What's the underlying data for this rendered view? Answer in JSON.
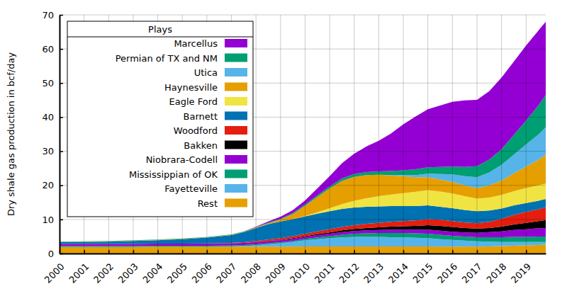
{
  "chart_data": {
    "type": "stacked_area",
    "ylabel": "Dry shale gas production in bcf/day",
    "legend_title": "Plays",
    "legend": "upper-left",
    "stacked": true,
    "grid": true,
    "x": [
      2000,
      2001,
      2002,
      2003,
      2004,
      2005,
      2006,
      2007,
      2007.5,
      2008,
      2008.5,
      2009,
      2009.5,
      2010,
      2010.5,
      2011,
      2011.5,
      2012,
      2012.5,
      2013,
      2013.5,
      2014,
      2014.5,
      2015,
      2015.5,
      2016,
      2016.5,
      2017,
      2017.5,
      2018,
      2018.5,
      2019,
      2019.5,
      2019.8
    ],
    "xlim": [
      2000,
      2019.8
    ],
    "xticks": [
      2000,
      2001,
      2002,
      2003,
      2004,
      2005,
      2006,
      2007,
      2008,
      2009,
      2010,
      2011,
      2012,
      2013,
      2014,
      2015,
      2016,
      2017,
      2018,
      2019
    ],
    "ylim": [
      0,
      70
    ],
    "yticks": [
      0,
      10,
      20,
      30,
      40,
      50,
      60,
      70
    ],
    "series": [
      {
        "name": "Marcellus",
        "color": "#9400d3",
        "values": [
          0,
          0,
          0,
          0,
          0,
          0,
          0,
          0,
          0,
          0.1,
          0.3,
          0.6,
          0.8,
          1.2,
          2.0,
          3.0,
          4.5,
          6.0,
          7.5,
          9.0,
          11.0,
          13.5,
          15.5,
          17.0,
          18.0,
          19.0,
          19.5,
          19.5,
          20.0,
          21.0,
          21.5,
          22.0,
          22.0,
          21.5
        ]
      },
      {
        "name": "Permian of TX and NM",
        "color": "#009e73",
        "values": [
          0.1,
          0.1,
          0.1,
          0.1,
          0.1,
          0.1,
          0.1,
          0.1,
          0.1,
          0.1,
          0.2,
          0.2,
          0.3,
          0.4,
          0.5,
          0.6,
          0.7,
          0.8,
          0.9,
          1.0,
          1.2,
          1.4,
          1.7,
          1.9,
          2.1,
          2.3,
          2.7,
          3.2,
          3.8,
          4.6,
          5.8,
          7.0,
          8.5,
          9.5
        ]
      },
      {
        "name": "Utica",
        "color": "#56b4e9",
        "values": [
          0,
          0,
          0,
          0,
          0,
          0,
          0,
          0,
          0,
          0,
          0,
          0,
          0,
          0,
          0,
          0,
          0,
          0,
          0,
          0,
          0.1,
          0.3,
          0.6,
          1.0,
          1.6,
          2.2,
          2.7,
          3.2,
          3.8,
          4.6,
          5.5,
          6.5,
          7.4,
          8.0
        ]
      },
      {
        "name": "Haynesville",
        "color": "#e69f00",
        "values": [
          0.1,
          0.1,
          0.1,
          0.1,
          0.1,
          0.1,
          0.1,
          0.1,
          0.1,
          0.2,
          0.3,
          0.6,
          1.5,
          3.0,
          4.5,
          5.8,
          6.8,
          7.0,
          6.8,
          6.3,
          5.6,
          5.0,
          4.3,
          3.8,
          3.5,
          3.4,
          3.2,
          3.1,
          3.6,
          4.2,
          5.2,
          6.3,
          7.5,
          8.5
        ]
      },
      {
        "name": "Eagle Ford",
        "color": "#f0e442",
        "values": [
          0,
          0,
          0,
          0,
          0,
          0,
          0,
          0,
          0,
          0,
          0,
          0,
          0,
          0.1,
          0.4,
          0.9,
          1.4,
          2.0,
          2.5,
          3.0,
          3.4,
          3.8,
          4.2,
          4.5,
          4.5,
          4.3,
          4.0,
          3.7,
          3.8,
          4.0,
          4.2,
          4.4,
          4.5,
          4.5
        ]
      },
      {
        "name": "Barnett",
        "color": "#0072b2",
        "values": [
          0.5,
          0.6,
          0.7,
          0.9,
          1.0,
          1.3,
          1.7,
          2.3,
          3.0,
          3.8,
          4.5,
          4.9,
          5.0,
          5.1,
          5.2,
          5.3,
          5.3,
          5.2,
          5.0,
          4.8,
          4.6,
          4.4,
          4.2,
          4.0,
          3.8,
          3.8,
          3.7,
          3.5,
          3.3,
          3.0,
          2.8,
          2.6,
          2.5,
          2.5
        ]
      },
      {
        "name": "Woodford",
        "color": "#e51e10",
        "values": [
          0,
          0,
          0,
          0,
          0,
          0,
          0.05,
          0.1,
          0.2,
          0.3,
          0.4,
          0.5,
          0.6,
          0.7,
          0.8,
          0.9,
          1.0,
          1.1,
          1.2,
          1.3,
          1.4,
          1.5,
          1.6,
          1.8,
          1.8,
          1.7,
          1.6,
          1.6,
          1.8,
          2.3,
          2.8,
          3.2,
          3.5,
          3.7
        ]
      },
      {
        "name": "Bakken",
        "color": "#000000",
        "values": [
          0,
          0,
          0,
          0,
          0,
          0,
          0,
          0,
          0,
          0.1,
          0.1,
          0.1,
          0.2,
          0.2,
          0.3,
          0.4,
          0.5,
          0.6,
          0.7,
          0.8,
          0.9,
          1.0,
          1.1,
          1.3,
          1.4,
          1.4,
          1.3,
          1.2,
          1.2,
          1.4,
          1.6,
          1.9,
          2.1,
          2.3
        ]
      },
      {
        "name": "Niobrara-Codell",
        "color": "#9400d3",
        "values": [
          0.6,
          0.6,
          0.6,
          0.6,
          0.6,
          0.6,
          0.6,
          0.6,
          0.6,
          0.6,
          0.6,
          0.6,
          0.6,
          0.6,
          0.7,
          0.7,
          0.8,
          0.8,
          0.9,
          0.9,
          1.0,
          1.0,
          1.1,
          1.2,
          1.2,
          1.2,
          1.2,
          1.3,
          1.5,
          1.7,
          2.0,
          2.2,
          2.4,
          2.5
        ]
      },
      {
        "name": "Mississippian of OK",
        "color": "#009e73",
        "values": [
          0.3,
          0.3,
          0.3,
          0.3,
          0.3,
          0.3,
          0.3,
          0.3,
          0.3,
          0.3,
          0.3,
          0.3,
          0.3,
          0.4,
          0.5,
          0.6,
          0.8,
          0.9,
          1.0,
          1.1,
          1.2,
          1.3,
          1.3,
          1.3,
          1.3,
          1.2,
          1.2,
          1.2,
          1.3,
          1.4,
          1.5,
          1.5,
          1.6,
          1.6
        ]
      },
      {
        "name": "Fayetteville",
        "color": "#56b4e9",
        "values": [
          0,
          0,
          0,
          0,
          0,
          0,
          0,
          0.1,
          0.2,
          0.4,
          0.7,
          1.0,
          1.4,
          1.8,
          2.1,
          2.4,
          2.6,
          2.8,
          2.8,
          2.8,
          2.7,
          2.6,
          2.5,
          2.4,
          2.2,
          2.0,
          1.8,
          1.6,
          1.4,
          1.2,
          1.1,
          1.0,
          0.9,
          0.8
        ]
      },
      {
        "name": "Rest",
        "color": "#e69f00",
        "values": [
          1.9,
          1.9,
          1.9,
          1.9,
          2.0,
          2.0,
          2.0,
          2.0,
          2.0,
          2.0,
          2.0,
          2.0,
          2.0,
          2.1,
          2.1,
          2.1,
          2.1,
          2.1,
          2.1,
          2.1,
          2.1,
          2.1,
          2.1,
          2.1,
          2.0,
          2.0,
          2.0,
          2.0,
          2.1,
          2.2,
          2.3,
          2.4,
          2.5,
          2.6
        ]
      }
    ]
  }
}
